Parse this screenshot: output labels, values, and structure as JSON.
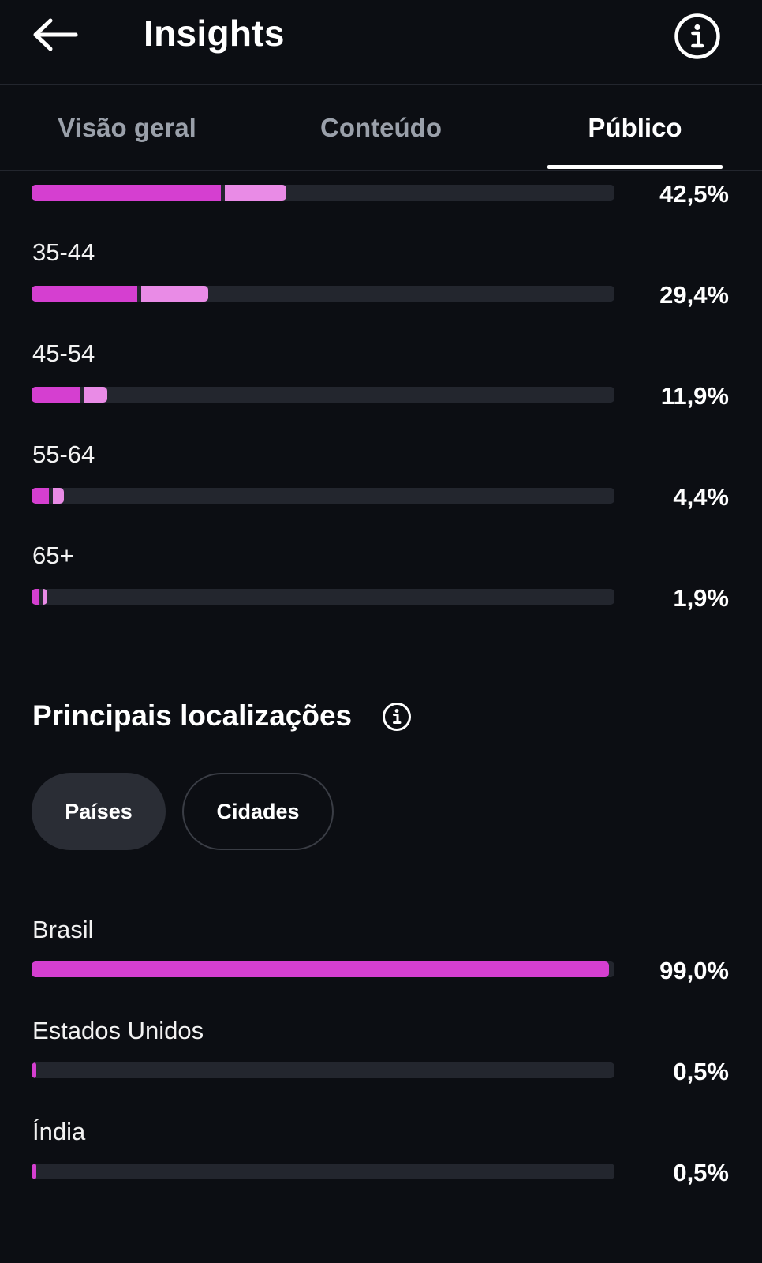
{
  "header": {
    "title": "Insights",
    "back_icon": "arrow-left-icon",
    "info_icon": "info-circle-icon"
  },
  "tabs": [
    {
      "label": "Visão geral",
      "active": false
    },
    {
      "label": "Conteúdo",
      "active": false
    },
    {
      "label": "Público",
      "active": true
    }
  ],
  "age_ranges": [
    {
      "label": "",
      "percent_text": "42,5%",
      "primary_fraction": 0.325,
      "secondary_fraction": 0.105
    },
    {
      "label": "35-44",
      "percent_text": "29,4%",
      "primary_fraction": 0.182,
      "secondary_fraction": 0.115
    },
    {
      "label": "45-54",
      "percent_text": "11,9%",
      "primary_fraction": 0.082,
      "secondary_fraction": 0.041
    },
    {
      "label": "55-64",
      "percent_text": "4,4%",
      "primary_fraction": 0.03,
      "secondary_fraction": 0.019
    },
    {
      "label": "65+",
      "percent_text": "1,9%",
      "primary_fraction": 0.012,
      "secondary_fraction": 0.008
    }
  ],
  "locations": {
    "title": "Principais localizações",
    "info_icon": "info-circle-icon",
    "filters": [
      {
        "label": "Países",
        "selected": true
      },
      {
        "label": "Cidades",
        "selected": false
      }
    ],
    "items": [
      {
        "label": "Brasil",
        "percent_text": "99,0%",
        "fraction": 0.99
      },
      {
        "label": "Estados Unidos",
        "percent_text": "0,5%",
        "fraction": 0.005
      },
      {
        "label": "Índia",
        "percent_text": "0,5%",
        "fraction": 0.005
      }
    ]
  },
  "colors": {
    "background": "#0c0e13",
    "track": "#23262e",
    "bar_primary": "#d53fd0",
    "bar_secondary": "#e98be6"
  }
}
